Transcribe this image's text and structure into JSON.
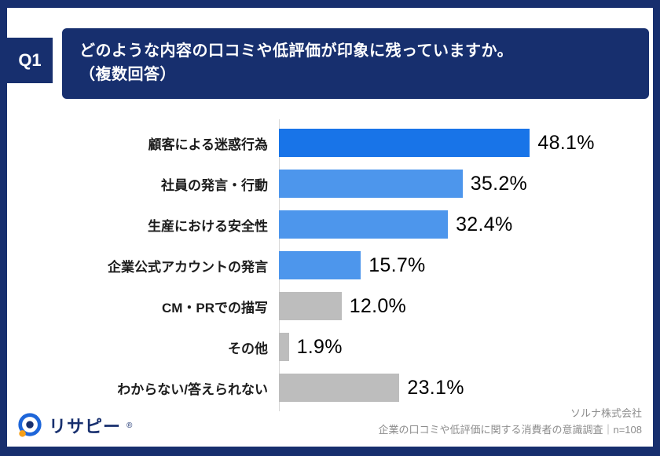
{
  "header": {
    "badge": "Q1",
    "title_line1": "どのような内容の口コミや低評価が印象に残っていますか。",
    "title_line2": "（複数回答）"
  },
  "chart_data": {
    "type": "bar",
    "orientation": "horizontal",
    "title": "どのような内容の口コミや低評価が印象に残っていますか。（複数回答）",
    "categories": [
      "顧客による迷惑行為",
      "社員の発言・行動",
      "生産における安全性",
      "企業公式アカウントの発言",
      "CM・PRでの描写",
      "その他",
      "わからない/答えられない"
    ],
    "values": [
      48.1,
      35.2,
      32.4,
      15.7,
      12.0,
      1.9,
      23.1
    ],
    "value_labels": [
      "48.1%",
      "35.2%",
      "32.4%",
      "15.7%",
      "12.0%",
      "1.9%",
      "23.1%"
    ],
    "bar_colors": [
      "#1874E8",
      "#4D96EC",
      "#4D96EC",
      "#4D96EC",
      "#BDBDBD",
      "#BDBDBD",
      "#BDBDBD"
    ],
    "xlim": [
      0,
      50
    ],
    "grid": false,
    "legend": "none"
  },
  "footer": {
    "logo_text": "リサピー",
    "logo_mark": "®",
    "credit_line1": "ソルナ株式会社",
    "credit_line2": "企業の口コミや低評価に関する消費者の意識調査｜n=108"
  },
  "colors": {
    "navy": "#172F6E",
    "bar_blue_primary": "#1874E8",
    "bar_blue_secondary": "#4D96EC",
    "bar_gray": "#BDBDBD",
    "axis_line": "#d8d8d8",
    "credit_text": "#8c8c8c"
  }
}
